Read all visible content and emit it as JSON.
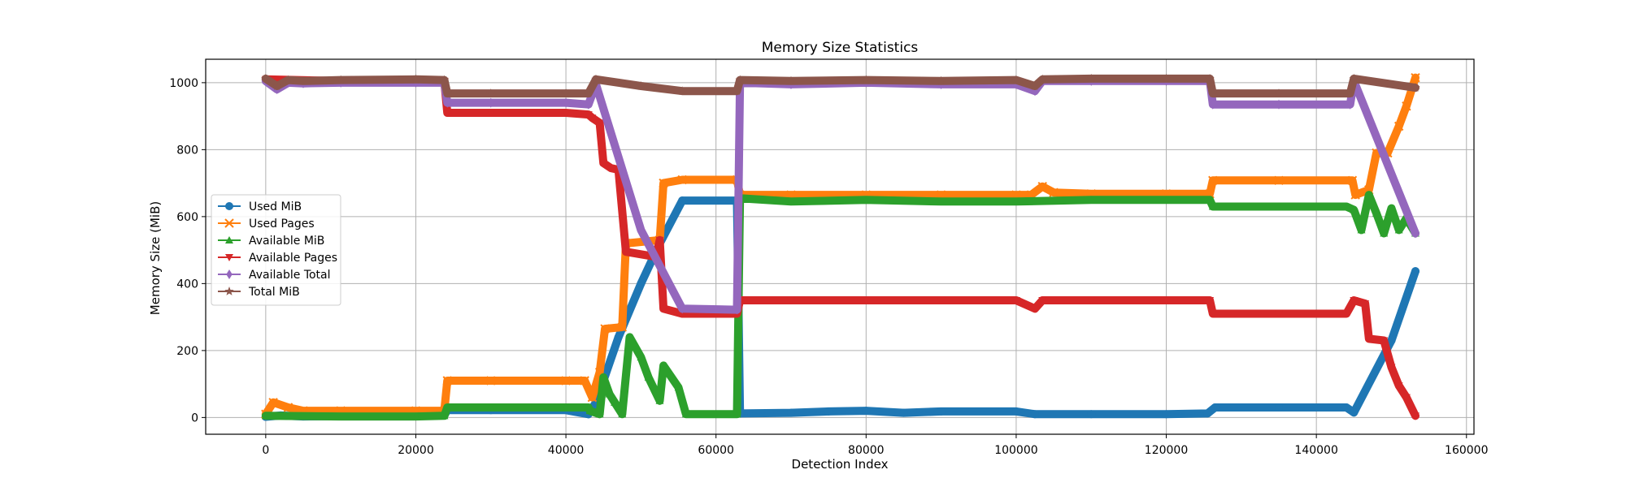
{
  "chart_data": {
    "type": "line",
    "title": "Memory Size Statistics",
    "xlabel": "Detection Index",
    "ylabel": "Memory Size (MiB)",
    "xlim": [
      -8000,
      161000
    ],
    "ylim": [
      -50,
      1070
    ],
    "x_ticks": [
      0,
      20000,
      40000,
      60000,
      80000,
      100000,
      120000,
      140000,
      160000
    ],
    "x_tick_labels": [
      "0",
      "20000",
      "40000",
      "60000",
      "80000",
      "100000",
      "120000",
      "140000",
      "160000"
    ],
    "y_ticks": [
      0,
      200,
      400,
      600,
      800,
      1000
    ],
    "y_tick_labels": [
      "0",
      "200",
      "400",
      "600",
      "800",
      "1000"
    ],
    "grid": true,
    "legend_position": "center-left",
    "series": [
      {
        "name": "Used MiB",
        "color": "#1f77b4",
        "marker": "circle",
        "x": [
          0,
          2000,
          5000,
          10000,
          20000,
          23800,
          24200,
          30000,
          40000,
          43000,
          44000,
          47000,
          50000,
          52500,
          55500,
          62800,
          63200,
          70000,
          75000,
          80000,
          85000,
          90000,
          100000,
          102500,
          110000,
          120000,
          125500,
          126500,
          135000,
          144000,
          145000,
          150000,
          153200
        ],
        "y": [
          2,
          6,
          3,
          4,
          6,
          6,
          22,
          22,
          22,
          10,
          45,
          240,
          400,
          520,
          648,
          648,
          12,
          14,
          18,
          20,
          14,
          18,
          18,
          10,
          10,
          10,
          12,
          30,
          30,
          30,
          15,
          230,
          437
        ]
      },
      {
        "name": "Used Pages",
        "color": "#ff7f0e",
        "marker": "x",
        "x": [
          0,
          1000,
          3000,
          5000,
          10000,
          20000,
          23800,
          24200,
          30000,
          40000,
          42500,
          43500,
          44500,
          45200,
          47500,
          48000,
          52500,
          53000,
          55500,
          62800,
          63200,
          70000,
          80000,
          90000,
          100000,
          102000,
          103500,
          105000,
          110000,
          120000,
          125800,
          126200,
          135000,
          144800,
          145200,
          147000,
          148000,
          149500,
          151000,
          152000,
          153200
        ],
        "y": [
          10,
          45,
          30,
          20,
          20,
          20,
          20,
          110,
          110,
          110,
          110,
          60,
          135,
          265,
          270,
          520,
          530,
          700,
          710,
          710,
          665,
          665,
          665,
          665,
          665,
          665,
          690,
          672,
          668,
          668,
          668,
          708,
          708,
          708,
          665,
          680,
          790,
          790,
          870,
          930,
          1015
        ]
      },
      {
        "name": "Available MiB",
        "color": "#2ca02c",
        "marker": "triangle-up",
        "x": [
          0,
          10000,
          20000,
          23800,
          24200,
          30000,
          40000,
          43000,
          43200,
          44500,
          45000,
          45800,
          46500,
          47500,
          48500,
          50000,
          51000,
          52500,
          53000,
          55000,
          56000,
          62800,
          63200,
          70000,
          80000,
          90000,
          100000,
          110000,
          120000,
          125800,
          126200,
          135000,
          144000,
          145000,
          146000,
          147000,
          148000,
          149000,
          150000,
          151000,
          152000,
          153200
        ],
        "y": [
          5,
          3,
          3,
          5,
          30,
          30,
          30,
          30,
          20,
          10,
          120,
          70,
          45,
          10,
          240,
          180,
          120,
          50,
          155,
          90,
          10,
          10,
          655,
          645,
          650,
          645,
          645,
          650,
          650,
          650,
          630,
          630,
          630,
          620,
          560,
          665,
          610,
          550,
          625,
          560,
          595,
          550
        ]
      },
      {
        "name": "Available Pages",
        "color": "#d62728",
        "marker": "triangle-down",
        "x": [
          0,
          10000,
          20000,
          23800,
          24200,
          30000,
          40000,
          43000,
          43500,
          44500,
          45000,
          46000,
          47000,
          48000,
          52000,
          52500,
          53000,
          55500,
          62800,
          63200,
          70000,
          80000,
          90000,
          100000,
          102500,
          103500,
          110000,
          120000,
          125800,
          126200,
          135000,
          144000,
          145000,
          146500,
          147000,
          149000,
          150000,
          151000,
          152000,
          153200
        ],
        "y": [
          1010,
          1005,
          1005,
          1005,
          910,
          910,
          910,
          905,
          895,
          880,
          760,
          745,
          740,
          495,
          480,
          530,
          325,
          310,
          310,
          350,
          350,
          350,
          350,
          350,
          325,
          350,
          350,
          350,
          350,
          310,
          310,
          310,
          350,
          340,
          235,
          230,
          150,
          95,
          60,
          5
        ]
      },
      {
        "name": "Available Total",
        "color": "#9467bd",
        "marker": "diamond",
        "x": [
          0,
          1500,
          3000,
          5000,
          10000,
          20000,
          23800,
          24200,
          30000,
          40000,
          43000,
          44000,
          50000,
          55500,
          62800,
          63200,
          70000,
          80000,
          90000,
          100000,
          102500,
          103500,
          110000,
          120000,
          125800,
          126200,
          135000,
          144500,
          145000,
          153200
        ],
        "y": [
          1005,
          980,
          1000,
          998,
          1000,
          1000,
          1000,
          940,
          940,
          940,
          935,
          995,
          560,
          325,
          322,
          1000,
          995,
          1000,
          995,
          995,
          975,
          1005,
          1005,
          1005,
          1005,
          935,
          935,
          935,
          1005,
          550
        ]
      },
      {
        "name": "Total MiB",
        "color": "#8c564b",
        "marker": "star",
        "x": [
          0,
          1500,
          3000,
          5000,
          10000,
          20000,
          23800,
          24200,
          30000,
          40000,
          43000,
          44000,
          50000,
          55500,
          62800,
          63200,
          70000,
          80000,
          90000,
          100000,
          102500,
          103500,
          110000,
          120000,
          125800,
          126200,
          135000,
          144500,
          145000,
          153200
        ],
        "y": [
          1012,
          990,
          1008,
          1005,
          1008,
          1010,
          1008,
          968,
          968,
          968,
          968,
          1010,
          990,
          975,
          975,
          1008,
          1005,
          1008,
          1005,
          1008,
          990,
          1010,
          1012,
          1012,
          1012,
          968,
          968,
          968,
          1012,
          985
        ]
      }
    ]
  }
}
